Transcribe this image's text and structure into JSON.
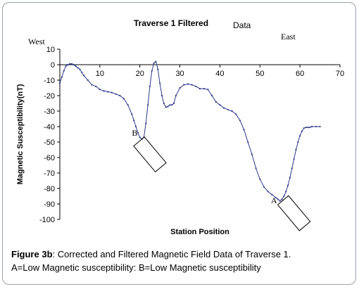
{
  "chart_data": {
    "type": "line",
    "title": "Traverse 1 Filtered",
    "title_suffix": "Data",
    "xlabel": "Station Position",
    "ylabel": "Magnetic Susceptibility(nT)",
    "xlim": [
      0,
      70
    ],
    "ylim": [
      -100,
      10
    ],
    "x_ticks": [
      0,
      10,
      20,
      30,
      40,
      50,
      60,
      70
    ],
    "y_ticks": [
      10,
      0,
      -10,
      -20,
      -30,
      -40,
      -50,
      -60,
      -70,
      -80,
      -90,
      -100
    ],
    "direction_labels": {
      "west": "West",
      "east": "East"
    },
    "annotations": [
      {
        "label": "A",
        "x": 53.5,
        "y": -89.5,
        "box_center": [
          58.5,
          -96
        ]
      },
      {
        "label": "B",
        "x": 18.7,
        "y": -46,
        "box_center": [
          22.5,
          -58
        ]
      }
    ],
    "series": [
      {
        "color": "#2e3a8c",
        "x": [
          0,
          0.5,
          1,
          1.5,
          2,
          2.5,
          3,
          3.5,
          4,
          4.5,
          5,
          5.5,
          6,
          7,
          8,
          9,
          10,
          11,
          12,
          13,
          14,
          15,
          16,
          17,
          18,
          18.5,
          19,
          19.5,
          20,
          20.5,
          21,
          21.5,
          22,
          22.5,
          23,
          23.5,
          24,
          24.5,
          25,
          25.5,
          26,
          26.5,
          27,
          27.5,
          28,
          28.5,
          29,
          30,
          31,
          32,
          33,
          34,
          35,
          36,
          37,
          38,
          39,
          40,
          41,
          42,
          43,
          44,
          45,
          46,
          47,
          48,
          49,
          50,
          51,
          52,
          53,
          54,
          54.5,
          55,
          55.5,
          56,
          56.5,
          57,
          57.5,
          58,
          58.5,
          59,
          59.5,
          60,
          60.5,
          61,
          61.5,
          62,
          62.5,
          63,
          64,
          65
        ],
        "y": [
          -12,
          -8,
          -4,
          -1,
          0,
          0.5,
          0.5,
          0,
          -1,
          -2,
          -3,
          -5,
          -7,
          -10,
          -13,
          -14,
          -16,
          -17,
          -17.5,
          -18,
          -19,
          -20,
          -22,
          -26,
          -32,
          -36,
          -40,
          -44,
          -47,
          -48,
          -47,
          -38,
          -26,
          -14,
          -4,
          1,
          2,
          -3,
          -12,
          -20,
          -25,
          -27.5,
          -27,
          -26,
          -26,
          -25,
          -20,
          -15,
          -13,
          -12.5,
          -13,
          -14,
          -15.5,
          -15.5,
          -16,
          -20,
          -24,
          -26,
          -28,
          -29,
          -30,
          -32,
          -36,
          -42,
          -50,
          -58,
          -67,
          -74,
          -79,
          -82,
          -84,
          -86,
          -87,
          -88,
          -87,
          -85,
          -82,
          -78,
          -73,
          -67,
          -61,
          -55,
          -50,
          -46,
          -43,
          -41,
          -40.5,
          -40.5,
          -40.5,
          -40,
          -40,
          -40
        ]
      }
    ]
  },
  "caption": {
    "figure_label": "Figure 3b",
    "line1": ": Corrected and Filtered Magnetic Field Data of Traverse 1.",
    "line2": "A=Low Magnetic susceptibility: B=Low Magnetic susceptibility"
  }
}
